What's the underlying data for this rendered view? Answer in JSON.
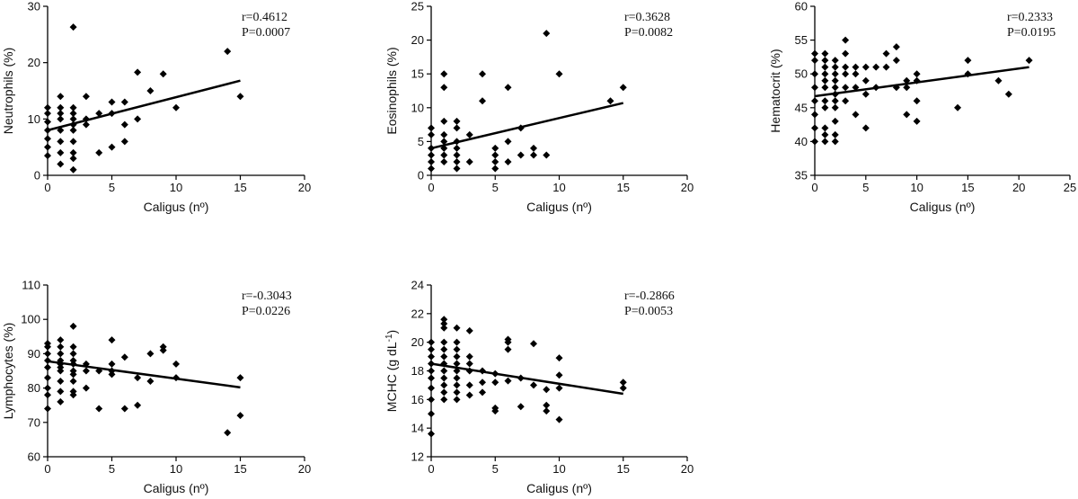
{
  "figure": {
    "background": "#ffffff",
    "ink": "#000000"
  },
  "chart_data": [
    {
      "type": "scatter",
      "xlabel": "Caligus (nº)",
      "ylabel": "Neutrophils (%)",
      "xlim": [
        0,
        20
      ],
      "ylim": [
        0,
        30
      ],
      "xticks": [
        "0",
        "5",
        "10",
        "15",
        "20"
      ],
      "yticks": [
        "0",
        "10",
        "20",
        "30"
      ],
      "stats": {
        "r": "r=0.4612",
        "p": "P=0.0007"
      },
      "regression": {
        "x1": 0,
        "y1": 8,
        "x2": 15,
        "y2": 16.8
      },
      "points": [
        [
          0,
          3.5
        ],
        [
          0,
          5
        ],
        [
          0,
          6.5
        ],
        [
          0,
          8
        ],
        [
          0,
          9.5
        ],
        [
          0,
          11
        ],
        [
          0,
          12
        ],
        [
          1,
          2
        ],
        [
          1,
          4
        ],
        [
          1,
          6
        ],
        [
          1,
          8
        ],
        [
          1,
          10
        ],
        [
          1,
          11
        ],
        [
          1,
          12
        ],
        [
          1,
          14
        ],
        [
          2,
          1
        ],
        [
          2,
          3
        ],
        [
          2,
          4
        ],
        [
          2,
          6
        ],
        [
          2,
          8
        ],
        [
          2,
          9
        ],
        [
          2,
          10
        ],
        [
          2,
          11
        ],
        [
          2,
          12
        ],
        [
          2,
          26.3
        ],
        [
          3,
          9
        ],
        [
          3,
          10
        ],
        [
          3,
          14
        ],
        [
          4,
          4
        ],
        [
          4,
          11
        ],
        [
          5,
          5
        ],
        [
          5,
          11
        ],
        [
          5,
          13
        ],
        [
          6,
          6
        ],
        [
          6,
          9
        ],
        [
          6,
          13
        ],
        [
          7,
          10
        ],
        [
          7,
          18.3
        ],
        [
          8,
          15
        ],
        [
          9,
          18
        ],
        [
          10,
          12
        ],
        [
          14,
          22
        ],
        [
          15,
          14
        ]
      ]
    },
    {
      "type": "scatter",
      "xlabel": "Caligus (nº)",
      "ylabel": "Eosinophils (%)",
      "xlim": [
        0,
        20
      ],
      "ylim": [
        0,
        25
      ],
      "xticks": [
        "0",
        "5",
        "10",
        "15",
        "20"
      ],
      "yticks": [
        "0",
        "5",
        "10",
        "15",
        "20",
        "25"
      ],
      "stats": {
        "r": "r=0.3628",
        "p": "P=0.0082"
      },
      "regression": {
        "x1": 0,
        "y1": 4,
        "x2": 15,
        "y2": 10.7
      },
      "points": [
        [
          0,
          1
        ],
        [
          0,
          2
        ],
        [
          0,
          3
        ],
        [
          0,
          4
        ],
        [
          0,
          6
        ],
        [
          0,
          7
        ],
        [
          1,
          2
        ],
        [
          1,
          3
        ],
        [
          1,
          4
        ],
        [
          1,
          5
        ],
        [
          1,
          6
        ],
        [
          1,
          8
        ],
        [
          1,
          13
        ],
        [
          1,
          15
        ],
        [
          2,
          1
        ],
        [
          2,
          2
        ],
        [
          2,
          3
        ],
        [
          2,
          4
        ],
        [
          2,
          5
        ],
        [
          2,
          7
        ],
        [
          2,
          8
        ],
        [
          3,
          2
        ],
        [
          3,
          6
        ],
        [
          4,
          11
        ],
        [
          4,
          15
        ],
        [
          5,
          1
        ],
        [
          5,
          2
        ],
        [
          5,
          3
        ],
        [
          5,
          4
        ],
        [
          6,
          2
        ],
        [
          6,
          5
        ],
        [
          6,
          13
        ],
        [
          7,
          3
        ],
        [
          7,
          7
        ],
        [
          8,
          3
        ],
        [
          8,
          4
        ],
        [
          9,
          3
        ],
        [
          9,
          21
        ],
        [
          10,
          15
        ],
        [
          14,
          11
        ],
        [
          15,
          13
        ]
      ]
    },
    {
      "type": "scatter",
      "xlabel": "Caligus (nº)",
      "ylabel": "Hematocrit (%)",
      "xlim": [
        0,
        25
      ],
      "ylim": [
        35,
        60
      ],
      "xticks": [
        "0",
        "5",
        "10",
        "15",
        "20",
        "25"
      ],
      "yticks": [
        "35",
        "40",
        "45",
        "50",
        "55",
        "60"
      ],
      "stats": {
        "r": "r=0.2333",
        "p": "P=0.0195"
      },
      "regression": {
        "x1": 0,
        "y1": 46.7,
        "x2": 21,
        "y2": 51
      },
      "points": [
        [
          0,
          40
        ],
        [
          0,
          42
        ],
        [
          0,
          44
        ],
        [
          0,
          46
        ],
        [
          0,
          48
        ],
        [
          0,
          50
        ],
        [
          0,
          52
        ],
        [
          0,
          53
        ],
        [
          1,
          40
        ],
        [
          1,
          41
        ],
        [
          1,
          42
        ],
        [
          1,
          45
        ],
        [
          1,
          46
        ],
        [
          1,
          48
        ],
        [
          1,
          49
        ],
        [
          1,
          50
        ],
        [
          1,
          51
        ],
        [
          1,
          52
        ],
        [
          1,
          53
        ],
        [
          2,
          40
        ],
        [
          2,
          41
        ],
        [
          2,
          43
        ],
        [
          2,
          45
        ],
        [
          2,
          46
        ],
        [
          2,
          47
        ],
        [
          2,
          48
        ],
        [
          2,
          49
        ],
        [
          2,
          50
        ],
        [
          2,
          51
        ],
        [
          2,
          52
        ],
        [
          3,
          46
        ],
        [
          3,
          48
        ],
        [
          3,
          50
        ],
        [
          3,
          51
        ],
        [
          3,
          53
        ],
        [
          3,
          55
        ],
        [
          4,
          44
        ],
        [
          4,
          48
        ],
        [
          4,
          50
        ],
        [
          4,
          51
        ],
        [
          5,
          42
        ],
        [
          5,
          47
        ],
        [
          5,
          49
        ],
        [
          5,
          51
        ],
        [
          6,
          48
        ],
        [
          6,
          51
        ],
        [
          7,
          51
        ],
        [
          7,
          53
        ],
        [
          8,
          48
        ],
        [
          8,
          52
        ],
        [
          8,
          54
        ],
        [
          9,
          44
        ],
        [
          9,
          48
        ],
        [
          9,
          49
        ],
        [
          10,
          43
        ],
        [
          10,
          46
        ],
        [
          10,
          49
        ],
        [
          10,
          50
        ],
        [
          14,
          45
        ],
        [
          15,
          50
        ],
        [
          15,
          52
        ],
        [
          18,
          49
        ],
        [
          19,
          47
        ],
        [
          21,
          52
        ]
      ]
    },
    {
      "type": "scatter",
      "xlabel": "Caligus (nº)",
      "ylabel": "Lymphocytes (%)",
      "xlim": [
        0,
        20
      ],
      "ylim": [
        60,
        110
      ],
      "xticks": [
        "0",
        "5",
        "10",
        "15",
        "20"
      ],
      "yticks": [
        "60",
        "70",
        "80",
        "90",
        "100",
        "110"
      ],
      "stats": {
        "r": "r=-0.3043",
        "p": "P=0.0226"
      },
      "regression": {
        "x1": 0,
        "y1": 87.8,
        "x2": 15,
        "y2": 80.2
      },
      "points": [
        [
          0,
          74
        ],
        [
          0,
          78
        ],
        [
          0,
          80
        ],
        [
          0,
          83
        ],
        [
          0,
          86
        ],
        [
          0,
          88
        ],
        [
          0,
          90
        ],
        [
          0,
          92
        ],
        [
          0,
          93
        ],
        [
          1,
          76
        ],
        [
          1,
          79
        ],
        [
          1,
          82
        ],
        [
          1,
          85
        ],
        [
          1,
          86
        ],
        [
          1,
          87
        ],
        [
          1,
          88
        ],
        [
          1,
          90
        ],
        [
          1,
          92
        ],
        [
          1,
          94
        ],
        [
          2,
          78
        ],
        [
          2,
          79
        ],
        [
          2,
          82
        ],
        [
          2,
          84
        ],
        [
          2,
          85
        ],
        [
          2,
          87
        ],
        [
          2,
          88
        ],
        [
          2,
          90
        ],
        [
          2,
          92
        ],
        [
          2,
          98
        ],
        [
          3,
          80
        ],
        [
          3,
          85
        ],
        [
          3,
          87
        ],
        [
          4,
          74
        ],
        [
          4,
          85
        ],
        [
          5,
          84
        ],
        [
          5,
          85
        ],
        [
          5,
          87
        ],
        [
          5,
          94
        ],
        [
          6,
          74
        ],
        [
          6,
          89
        ],
        [
          7,
          75
        ],
        [
          7,
          83
        ],
        [
          8,
          82
        ],
        [
          8,
          90
        ],
        [
          9,
          91
        ],
        [
          9,
          92
        ],
        [
          10,
          83
        ],
        [
          10,
          87
        ],
        [
          14,
          67
        ],
        [
          15,
          72
        ],
        [
          15,
          83
        ]
      ]
    },
    {
      "type": "scatter",
      "xlabel": "Caligus (nº)",
      "ylabel": "MCHC (g dL",
      "ylabel_sup": "-1",
      "ylabel_tail": ")",
      "xlim": [
        0,
        20
      ],
      "ylim": [
        12,
        24
      ],
      "xticks": [
        "0",
        "5",
        "10",
        "15",
        "20"
      ],
      "yticks": [
        "12",
        "14",
        "16",
        "18",
        "20",
        "22",
        "24"
      ],
      "stats": {
        "r": "r=-0.2866",
        "p": "P=0.0053"
      },
      "regression": {
        "x1": 0,
        "y1": 18.5,
        "x2": 15,
        "y2": 16.4
      },
      "points": [
        [
          0,
          13.6
        ],
        [
          0,
          15
        ],
        [
          0,
          16
        ],
        [
          0,
          16.8
        ],
        [
          0,
          17.5
        ],
        [
          0,
          18
        ],
        [
          0,
          18.5
        ],
        [
          0,
          19
        ],
        [
          0,
          19.5
        ],
        [
          0,
          20
        ],
        [
          1,
          16
        ],
        [
          1,
          16.5
        ],
        [
          1,
          17
        ],
        [
          1,
          17.5
        ],
        [
          1,
          18
        ],
        [
          1,
          18.5
        ],
        [
          1,
          19
        ],
        [
          1,
          19.5
        ],
        [
          1,
          20
        ],
        [
          1,
          21
        ],
        [
          1,
          21.3
        ],
        [
          1,
          21.6
        ],
        [
          2,
          16
        ],
        [
          2,
          16.5
        ],
        [
          2,
          17
        ],
        [
          2,
          17.5
        ],
        [
          2,
          18
        ],
        [
          2,
          18.5
        ],
        [
          2,
          19
        ],
        [
          2,
          19.5
        ],
        [
          2,
          20
        ],
        [
          2,
          21
        ],
        [
          3,
          16.3
        ],
        [
          3,
          17
        ],
        [
          3,
          18
        ],
        [
          3,
          18.5
        ],
        [
          3,
          19
        ],
        [
          3,
          20.8
        ],
        [
          4,
          16.5
        ],
        [
          4,
          17.2
        ],
        [
          4,
          18
        ],
        [
          5,
          15.2
        ],
        [
          5,
          15.4
        ],
        [
          5,
          17.2
        ],
        [
          5,
          17.8
        ],
        [
          6,
          17.3
        ],
        [
          6,
          19.5
        ],
        [
          6,
          20
        ],
        [
          6,
          20.2
        ],
        [
          7,
          15.5
        ],
        [
          7,
          17.5
        ],
        [
          8,
          17
        ],
        [
          8,
          19.9
        ],
        [
          9,
          15.2
        ],
        [
          9,
          15.6
        ],
        [
          9,
          16.7
        ],
        [
          10,
          14.6
        ],
        [
          10,
          16.8
        ],
        [
          10,
          17.7
        ],
        [
          10,
          18.9
        ],
        [
          15,
          16.8
        ],
        [
          15,
          17.2
        ]
      ]
    }
  ]
}
